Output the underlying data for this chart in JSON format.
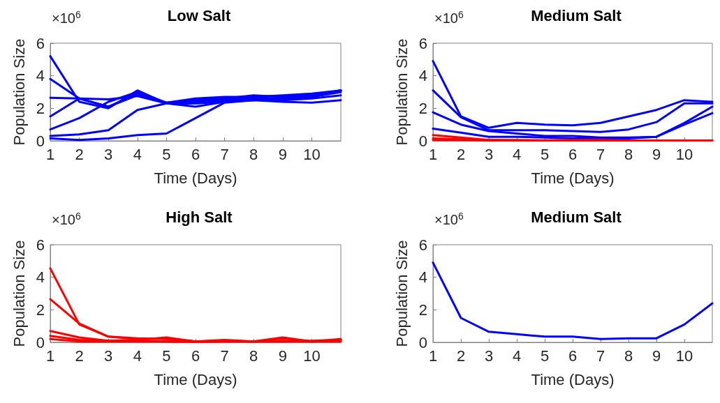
{
  "chart_data": [
    {
      "type": "line",
      "title": "Low Salt",
      "xlabel": "Time (Days)",
      "ylabel": "Population Size",
      "annotations": [
        "×10$^{6}$"
      ],
      "xlim": [
        1,
        11
      ],
      "xticks": [
        1,
        2,
        3,
        4,
        5,
        6,
        7,
        8,
        9,
        10
      ],
      "ylim": [
        0,
        6
      ],
      "yticks": [
        0,
        2,
        4,
        6
      ],
      "grid": false,
      "marker": "none",
      "line_style": "solid",
      "x": [
        1,
        2,
        3,
        4,
        5,
        6,
        7,
        8,
        9,
        10,
        11
      ],
      "series": [
        {
          "color": "#0000ff",
          "values": [
            5.2,
            2.4,
            2.0,
            3.1,
            2.3,
            2.4,
            2.6,
            2.8,
            2.7,
            2.8,
            3.1
          ]
        },
        {
          "color": "#0000ff",
          "values": [
            3.8,
            2.6,
            2.1,
            2.9,
            2.3,
            2.3,
            2.5,
            2.6,
            2.6,
            2.7,
            3.1
          ]
        },
        {
          "color": "#0000ff",
          "values": [
            2.65,
            2.6,
            2.55,
            2.75,
            2.3,
            2.1,
            2.4,
            2.5,
            2.4,
            2.35,
            2.5
          ]
        },
        {
          "color": "#0000ff",
          "values": [
            1.5,
            2.6,
            2.1,
            2.8,
            2.35,
            2.5,
            2.6,
            2.7,
            2.8,
            2.9,
            3.1
          ]
        },
        {
          "color": "#0000ff",
          "values": [
            0.7,
            1.4,
            2.4,
            3.0,
            2.35,
            2.6,
            2.7,
            2.7,
            2.75,
            2.8,
            3.1
          ]
        },
        {
          "color": "#0000ff",
          "values": [
            0.3,
            0.4,
            0.65,
            1.9,
            2.3,
            2.3,
            2.4,
            2.6,
            2.5,
            2.6,
            2.8
          ]
        },
        {
          "color": "#0000ff",
          "values": [
            0.15,
            0.05,
            0.15,
            0.35,
            0.45,
            1.4,
            2.35,
            2.5,
            2.6,
            2.7,
            3.0
          ]
        }
      ]
    },
    {
      "type": "line",
      "title": "Medium Salt",
      "xlabel": "Time (Days)",
      "ylabel": "Population Size",
      "annotations": [
        "×10$^{6}$"
      ],
      "xlim": [
        1,
        11
      ],
      "xticks": [
        1,
        2,
        3,
        4,
        5,
        6,
        7,
        8,
        9,
        10
      ],
      "ylim": [
        0,
        6
      ],
      "yticks": [
        0,
        2,
        4,
        6
      ],
      "grid": false,
      "marker": "none",
      "line_style": "solid",
      "x": [
        1,
        2,
        3,
        4,
        5,
        6,
        7,
        8,
        9,
        10,
        11
      ],
      "series": [
        {
          "color": "#0000ff",
          "values": [
            4.9,
            1.5,
            0.8,
            1.1,
            1.0,
            0.95,
            1.1,
            1.5,
            1.9,
            2.5,
            2.4
          ]
        },
        {
          "color": "#0000ff",
          "values": [
            3.1,
            1.45,
            0.65,
            0.65,
            0.65,
            0.6,
            0.55,
            0.7,
            1.15,
            2.3,
            2.3
          ]
        },
        {
          "color": "#0000ff",
          "values": [
            1.75,
            1.0,
            0.6,
            0.45,
            0.3,
            0.3,
            0.2,
            0.2,
            0.25,
            1.0,
            1.7
          ]
        },
        {
          "color": "#0000ff",
          "values": [
            0.75,
            0.5,
            0.25,
            0.25,
            0.2,
            0.15,
            0.15,
            0.15,
            0.25,
            1.1,
            2.1
          ]
        },
        {
          "color": "#ff0000",
          "values": [
            0.35,
            0.2,
            0.05,
            0.05,
            0.03,
            0.05,
            0.05,
            0.02,
            0.02,
            0.02,
            0.02
          ]
        },
        {
          "color": "#ff0000",
          "values": [
            0.15,
            0.1,
            0.05,
            0.02,
            0.02,
            0.02,
            0.02,
            0.02,
            0.02,
            0.02,
            0.02
          ]
        },
        {
          "color": "#ff0000",
          "values": [
            0.05,
            0.05,
            0.02,
            0.02,
            0.02,
            0.02,
            0.02,
            0.02,
            0.02,
            0.02,
            0.02
          ]
        }
      ]
    },
    {
      "type": "line",
      "title": "High Salt",
      "xlabel": "Time (Days)",
      "ylabel": "Population Size",
      "annotations": [
        "×10$^{6}$"
      ],
      "xlim": [
        1,
        11
      ],
      "xticks": [
        1,
        2,
        3,
        4,
        5,
        6,
        7,
        8,
        9,
        10
      ],
      "ylim": [
        0,
        6
      ],
      "yticks": [
        0,
        2,
        4,
        6
      ],
      "grid": false,
      "marker": "none",
      "line_style": "solid",
      "x": [
        1,
        2,
        3,
        4,
        5,
        6,
        7,
        8,
        9,
        10,
        11
      ],
      "series": [
        {
          "color": "#ff0000",
          "values": [
            4.55,
            1.1,
            0.35,
            0.25,
            0.2,
            0.05,
            0.1,
            0.05,
            0.25,
            0.05,
            0.2
          ]
        },
        {
          "color": "#ff0000",
          "values": [
            2.65,
            1.15,
            0.35,
            0.2,
            0.25,
            0.05,
            0.1,
            0.05,
            0.05,
            0.1,
            0.15
          ]
        },
        {
          "color": "#ff0000",
          "values": [
            0.7,
            0.3,
            0.1,
            0.15,
            0.3,
            0.05,
            0.15,
            0.05,
            0.3,
            0.05,
            0.15
          ]
        },
        {
          "color": "#ff0000",
          "values": [
            0.4,
            0.15,
            0.1,
            0.1,
            0.05,
            0.05,
            0.05,
            0.05,
            0.1,
            0.05,
            0.1
          ]
        },
        {
          "color": "#ff0000",
          "values": [
            0.2,
            0.05,
            0.05,
            0.05,
            0.05,
            0.02,
            0.05,
            0.05,
            0.05,
            0.05,
            0.05
          ]
        }
      ]
    },
    {
      "type": "line",
      "title": "Medium Salt",
      "xlabel": "Time (Days)",
      "ylabel": "Population Size",
      "annotations": [
        "×10$^{6}$"
      ],
      "xlim": [
        1,
        11
      ],
      "xticks": [
        1,
        2,
        3,
        4,
        5,
        6,
        7,
        8,
        9,
        10
      ],
      "ylim": [
        0,
        6
      ],
      "yticks": [
        0,
        2,
        4,
        6
      ],
      "grid": false,
      "marker": "none",
      "line_style": "solid",
      "x": [
        1,
        2,
        3,
        4,
        5,
        6,
        7,
        8,
        9,
        10,
        11
      ],
      "series": [
        {
          "color": "#0000ff",
          "values": [
            4.9,
            1.5,
            0.65,
            0.5,
            0.35,
            0.35,
            0.2,
            0.25,
            0.25,
            1.1,
            2.4
          ]
        }
      ]
    }
  ]
}
